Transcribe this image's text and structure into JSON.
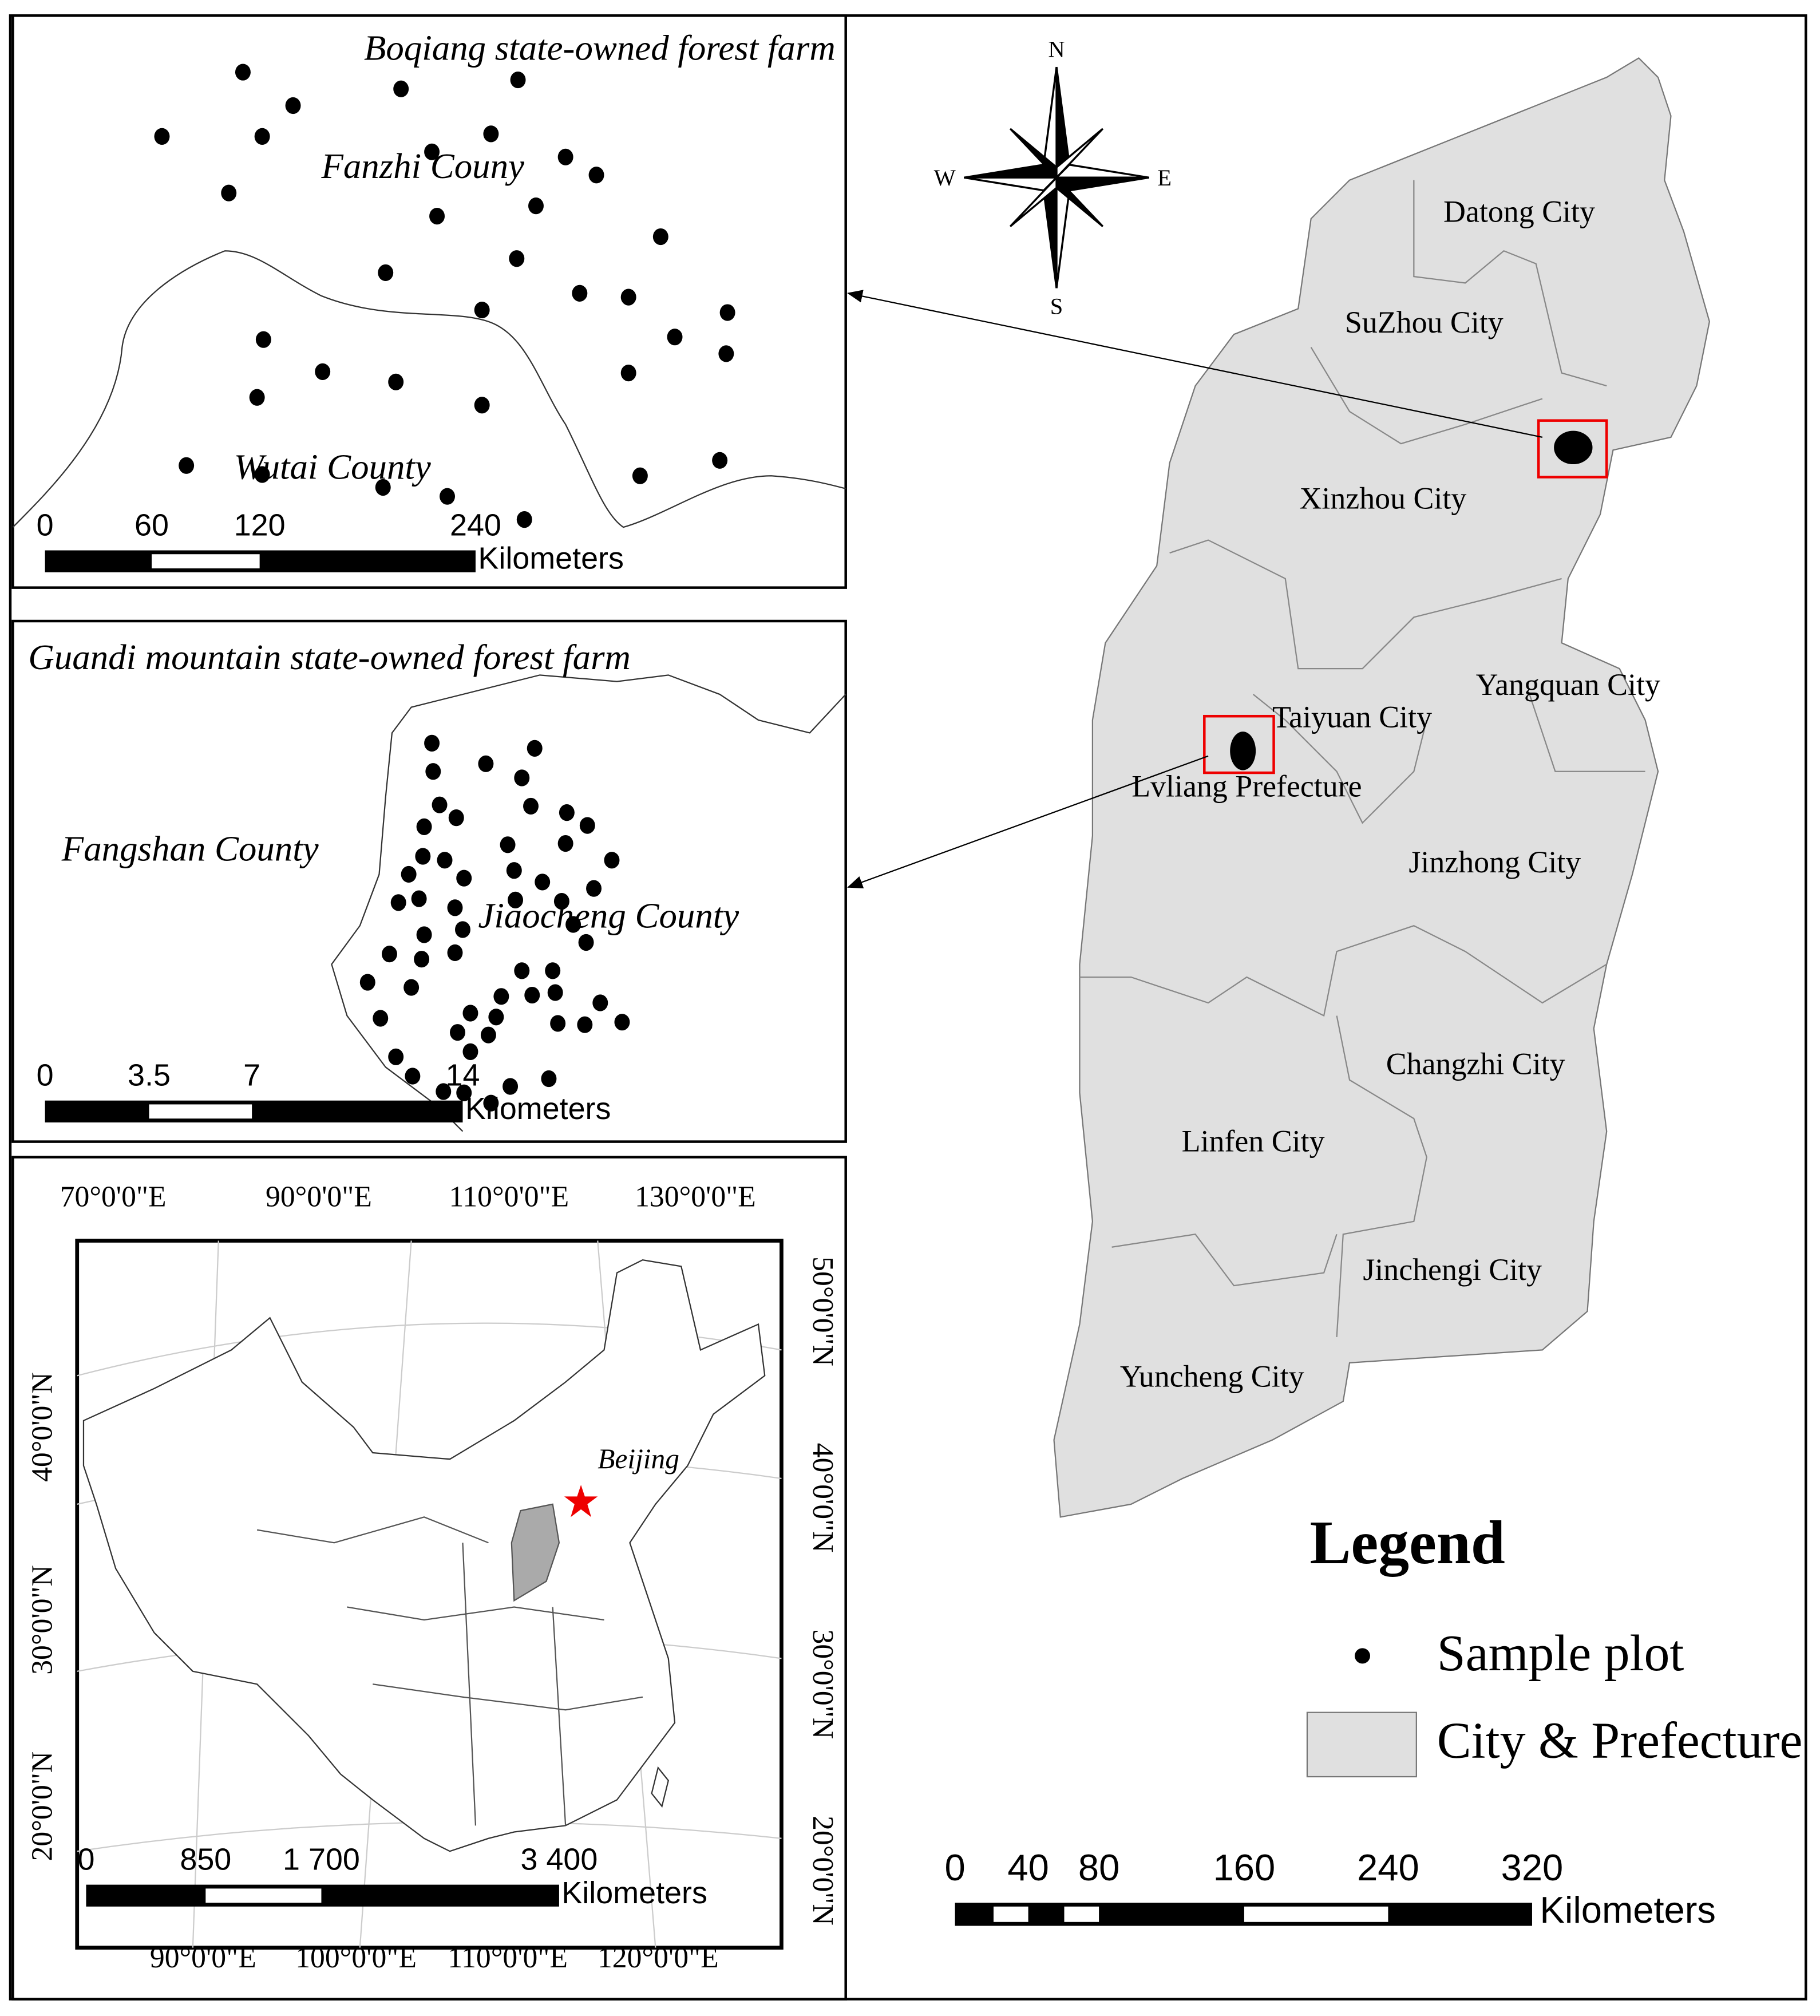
{
  "inset_boqiang": {
    "title": "Boqiang state-owned forest farm",
    "labels": [
      "Fanzhi Couny",
      "Wutai County"
    ],
    "scale_labels": [
      "0",
      "60",
      "120",
      "240"
    ],
    "scale_unit": "Kilometers"
  },
  "inset_guandi": {
    "title": "Guandi mountain state-owned forest farm",
    "labels": [
      "Fangshan County",
      "Jiaocheng County"
    ],
    "scale_labels": [
      "0",
      "3.5",
      "7",
      "14"
    ],
    "scale_unit": "Kilometers"
  },
  "inset_china": {
    "top_lon_labels": [
      "70°0'0\"E",
      "90°0'0\"E",
      "110°0'0\"E",
      "130°0'0\"E"
    ],
    "bottom_lon_labels": [
      "90°0'0\"E",
      "100°0'0\"E",
      "110°0'0\"E",
      "120°0'0\"E"
    ],
    "left_lat_labels": [
      "40°0'0\"N",
      "30°0'0\"N",
      "20°0'0\"N"
    ],
    "right_lat_labels": [
      "50°0'0\"N",
      "40°0'0\"N",
      "30°0'0\"N",
      "20°0'0\"N"
    ],
    "place_label": "Beijing",
    "scale_labels": [
      "0",
      "850",
      "1 700",
      "3 400"
    ],
    "scale_unit": "Kilometers"
  },
  "compass": {
    "north": "N",
    "south": "S",
    "west": "W",
    "east": "E"
  },
  "main_map": {
    "cities": [
      "Datong City",
      "SuZhou City",
      "Xinzhou City",
      "Yangquan City",
      "Taiyuan City",
      "Lvliang Prefecture",
      "Jinzhong City",
      "Changzhi City",
      "Linfen City",
      "Jinchengi City",
      "Yuncheng City"
    ],
    "scale_labels": [
      "0",
      "40",
      "80",
      "160",
      "240",
      "320"
    ],
    "scale_unit": "Kilometers"
  },
  "legend": {
    "title": "Legend",
    "items": [
      "Sample plot",
      "City & Prefecture"
    ]
  }
}
